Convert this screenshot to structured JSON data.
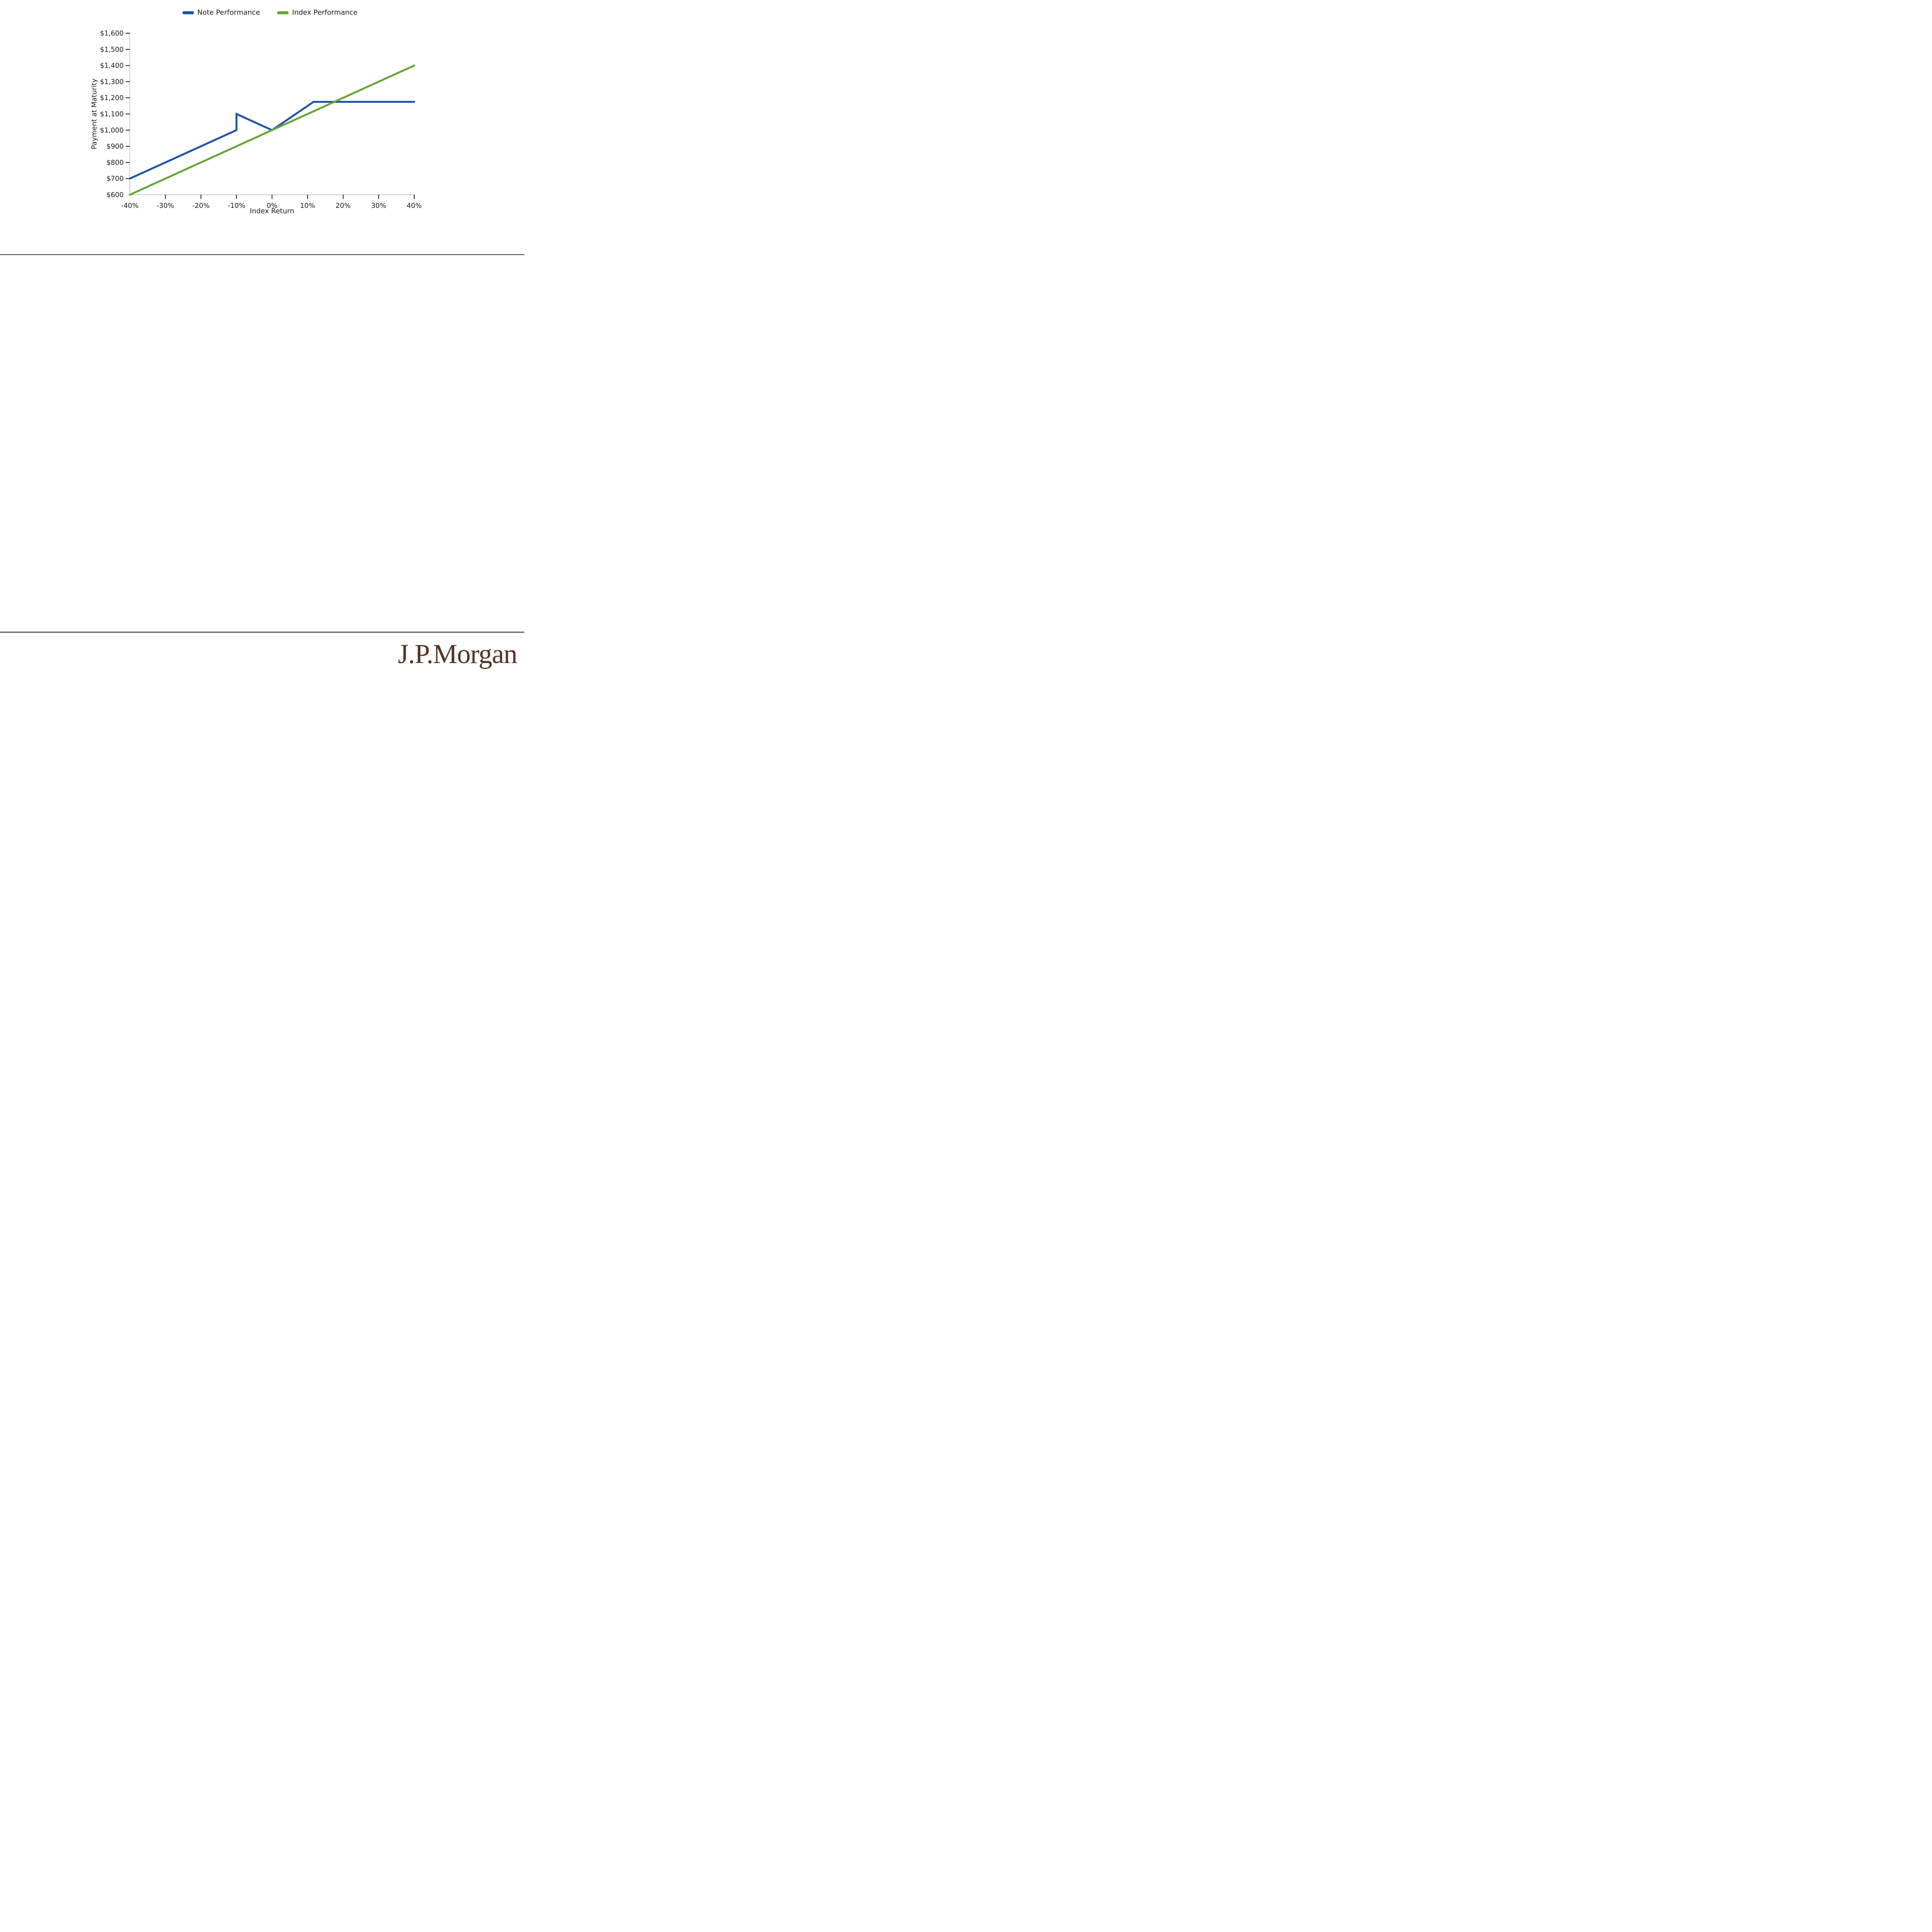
{
  "legend": {
    "items": [
      {
        "label": "Note Performance",
        "color": "#2154A6"
      },
      {
        "label": "Index Performance",
        "color": "#64A637"
      }
    ]
  },
  "chart_data": {
    "type": "line",
    "title": "",
    "xlabel": "Index Return",
    "ylabel": "Payment at Maturity",
    "xlim": [
      -40,
      40
    ],
    "ylim": [
      600,
      1600
    ],
    "grid": false,
    "legend_position": "top-center",
    "x_ticks": [
      -40,
      -30,
      -20,
      -10,
      0,
      10,
      20,
      30,
      40
    ],
    "x_tick_labels": [
      "-40%",
      "-30%",
      "-20%",
      "-10%",
      "0%",
      "10%",
      "20%",
      "30%",
      "40%"
    ],
    "y_ticks": [
      600,
      700,
      800,
      900,
      1000,
      1100,
      1200,
      1300,
      1400,
      1500,
      1600
    ],
    "y_tick_labels": [
      "$600",
      "$700",
      "$800",
      "$900",
      "$1,000",
      "$1,100",
      "$1,200",
      "$1,300",
      "$1,400",
      "$1,500",
      "$1,600"
    ],
    "axis_color": "#c9c9c9",
    "tick_color": "#1a1a1a",
    "series": [
      {
        "name": "Note Performance",
        "color": "#2154A6",
        "points": [
          [
            -40,
            700
          ],
          [
            -10,
            1000
          ],
          [
            -10,
            1100
          ],
          [
            0,
            1000
          ],
          [
            11.67,
            1175
          ],
          [
            40,
            1175
          ]
        ]
      },
      {
        "name": "Index Performance",
        "color": "#64A637",
        "points": [
          [
            -40,
            600
          ],
          [
            40,
            1400
          ]
        ]
      }
    ]
  },
  "rules": {
    "top_color": "#4A3423",
    "bottom_color": "#151515"
  },
  "footer": {
    "logo_text": "J.P.Morgan",
    "logo_color": "#563325"
  }
}
